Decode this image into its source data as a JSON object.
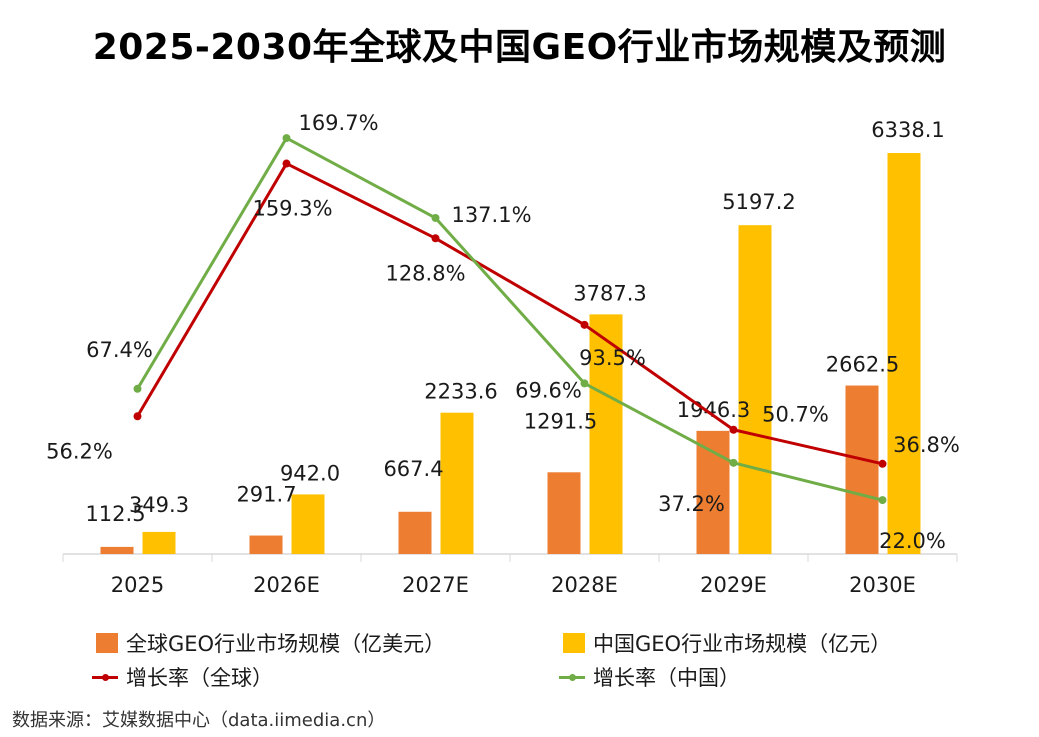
{
  "title": "2025-2030年全球及中国GEO行业市场规模及预测",
  "source": "数据来源：艾媒数据中心（data.iimedia.cn）",
  "colors": {
    "global_bar": "#ED7D31",
    "china_bar": "#FFC000",
    "global_rate": "#C00000",
    "china_rate": "#70AD47",
    "axis": "#D9D9D9"
  },
  "legend": [
    {
      "label": "全球GEO行业市场规模（亿美元）",
      "type": "bar",
      "color": "#ED7D31"
    },
    {
      "label": "中国GEO行业市场规模（亿元）",
      "type": "bar",
      "color": "#FFC000"
    },
    {
      "label": "增长率（全球）",
      "type": "line",
      "color": "#C00000"
    },
    {
      "label": "增长率（中国）",
      "type": "line",
      "color": "#70AD47"
    }
  ],
  "chart_data": {
    "type": "bar",
    "title": "2025-2030年全球及中国GEO行业市场规模及预测",
    "categories": [
      "2025",
      "2026E",
      "2027E",
      "2028E",
      "2029E",
      "2030E"
    ],
    "series": [
      {
        "name": "全球GEO行业市场规模（亿美元）",
        "type": "bar",
        "axis": "left",
        "values": [
          112.5,
          291.7,
          667.4,
          1291.5,
          1946.3,
          2662.5
        ],
        "labels": [
          "112.5",
          "291.7",
          "667.4",
          "1291.5",
          "1946.3",
          "2662.5"
        ]
      },
      {
        "name": "中国GEO行业市场规模（亿元）",
        "type": "bar",
        "axis": "left",
        "values": [
          349.3,
          942.0,
          2233.6,
          3787.3,
          5197.2,
          6338.1
        ],
        "labels": [
          "349.3",
          "942.0",
          "2233.6",
          "3787.3",
          "5197.2",
          "6338.1"
        ]
      },
      {
        "name": "增长率（全球）",
        "type": "line",
        "axis": "right",
        "unit": "%",
        "values": [
          56.2,
          159.3,
          128.8,
          93.5,
          50.7,
          36.8
        ],
        "labels": [
          "56.2%",
          "159.3%",
          "128.8%",
          "93.5%",
          "50.7%",
          "36.8%"
        ]
      },
      {
        "name": "增长率（中国）",
        "type": "line",
        "axis": "right",
        "unit": "%",
        "values": [
          67.4,
          169.7,
          137.1,
          69.6,
          37.2,
          22.0
        ],
        "labels": [
          "67.4%",
          "169.7%",
          "137.1%",
          "69.6%",
          "37.2%",
          "22.0%"
        ]
      }
    ],
    "xlabel": "",
    "ylabel": "",
    "y_axis_visible": false,
    "grid": false,
    "legend_position": "bottom",
    "ylim_bars": [
      0,
      6500
    ],
    "ylim_rates": [
      0,
      180
    ]
  }
}
